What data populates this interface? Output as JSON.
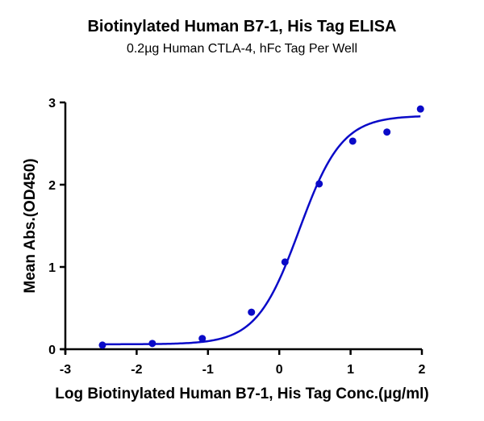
{
  "chart_data": {
    "type": "scatter",
    "title": "Biotinylated Human B7-1, His Tag ELISA",
    "subtitle": "0.2µg Human CTLA-4, hFc Tag Per Well",
    "xlabel": "Log Biotinylated Human B7-1, His Tag Conc.(µg/ml)",
    "ylabel": "Mean Abs.(OD450)",
    "xlim": [
      -3,
      2
    ],
    "ylim": [
      0,
      3
    ],
    "xticks": [
      -3,
      -2,
      -1,
      0,
      1,
      2
    ],
    "yticks": [
      0,
      1,
      2,
      3
    ],
    "grid": false,
    "legend": null,
    "series": [
      {
        "name": "Data",
        "color": "#0a0ac8",
        "x": [
          -2.48,
          -1.78,
          -1.08,
          -0.39,
          0.08,
          0.56,
          1.03,
          1.51,
          1.98
        ],
        "y": [
          0.05,
          0.07,
          0.13,
          0.45,
          1.06,
          2.01,
          2.53,
          2.64,
          2.92
        ]
      }
    ],
    "fit": {
      "type": "4PL sigmoid",
      "bottom": 0.06,
      "top": 2.84,
      "logEC50": 0.28,
      "hill": 1.45
    }
  }
}
